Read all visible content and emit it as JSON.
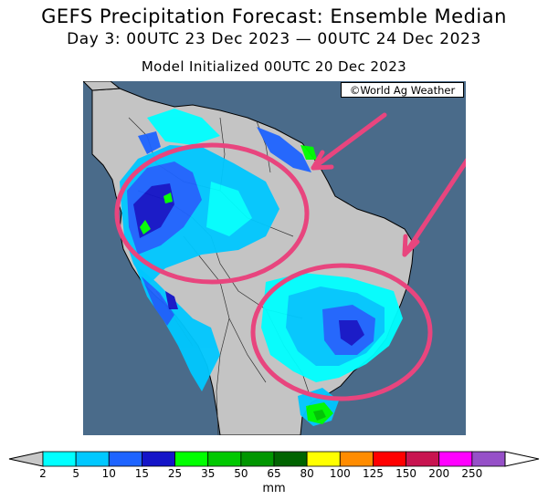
{
  "title": "GEFS Precipitation Forecast: Ensemble Median",
  "period": "Day 3: 00UTC 23 Dec 2023 — 00UTC 24 Dec 2023",
  "initialized": "Model Initialized 00UTC 20 Dec 2023",
  "credit": "©World Ag Weather",
  "legend": {
    "units": "mm",
    "ticks": [
      "2",
      "5",
      "10",
      "15",
      "25",
      "35",
      "50",
      "65",
      "80",
      "100",
      "125",
      "150",
      "200",
      "250"
    ],
    "colors": [
      "#00ffff",
      "#00c8ff",
      "#1e64ff",
      "#1414c8",
      "#00ff00",
      "#00c800",
      "#009600",
      "#006400",
      "#ffff00",
      "#ff8c00",
      "#ff0000",
      "#c81450",
      "#ff00ff",
      "#9650c8"
    ],
    "under_color": "#c8c8c8",
    "over_color": "#ffffff"
  },
  "map": {
    "ocean_color": "#4a6b8a",
    "land_color": "#c4c4c4",
    "annotation_color": "#e8457e"
  }
}
